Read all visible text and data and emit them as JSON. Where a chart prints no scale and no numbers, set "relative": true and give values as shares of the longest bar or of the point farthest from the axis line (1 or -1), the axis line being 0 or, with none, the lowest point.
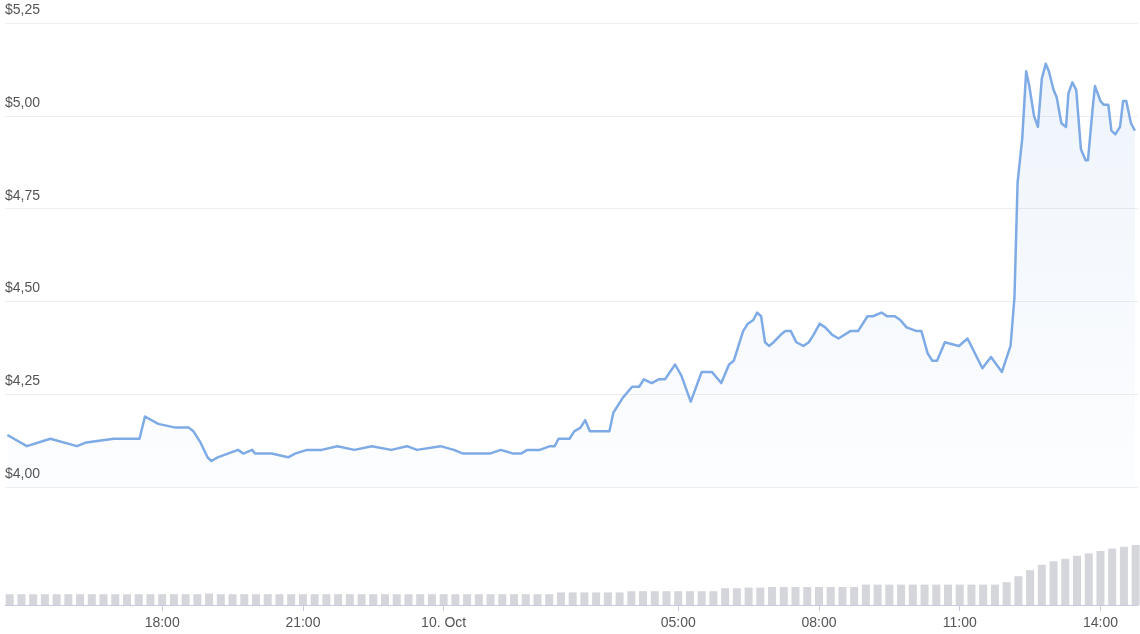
{
  "chart_data": [
    {
      "type": "area",
      "color": "#7eabe6",
      "xlim": [
        "--10-09T14:39",
        "--10-10T14:48"
      ],
      "ylim": [
        4,
        5.25
      ],
      "grid": "y",
      "tick_labels": "y",
      "yticks": [
        {
          "value": 4,
          "label": "$4,00"
        },
        {
          "value": 4.25,
          "label": "$4,25"
        },
        {
          "value": 4.5,
          "label": "$4,50"
        },
        {
          "value": 4.75,
          "label": "$4,75"
        },
        {
          "value": 5,
          "label": "$5,00"
        },
        {
          "value": 5.25,
          "label": "$5,25"
        }
      ],
      "x": [
        "--10-09T14:42",
        "--10-09T15:07",
        "--10-09T15:37",
        "--10-09T16:11",
        "--10-09T16:23",
        "--10-09T16:58",
        "--10-09T17:04",
        "--10-09T17:31",
        "--10-09T17:38",
        "--10-09T17:55",
        "--10-09T18:17",
        "--10-09T18:34",
        "--10-09T18:40",
        "--10-09T18:49",
        "--10-09T18:58",
        "--10-09T19:03",
        "--10-09T19:11",
        "--10-09T19:37",
        "--10-09T19:44",
        "--10-09T19:55",
        "--10-09T19:59",
        "--10-09T20:20",
        "--10-09T20:41",
        "--10-09T20:50",
        "--10-09T21:05",
        "--10-09T21:24",
        "--10-09T21:44",
        "--10-09T22:06",
        "--10-09T22:28",
        "--10-09T22:53",
        "--10-09T23:13",
        "--10-09T23:26",
        "--10-09T23:56",
        "--10-10T00:13",
        "--10-10T00:25",
        "--10-10T00:59",
        "--10-10T01:13",
        "--10-10T01:29",
        "--10-10T01:39",
        "--10-10T01:47",
        "--10-10T02:03",
        "--10-10T02:16",
        "--10-10T02:22",
        "--10-10T02:27",
        "--10-10T02:41",
        "--10-10T02:47",
        "--10-10T02:55",
        "--10-10T03:01",
        "--10-10T03:07",
        "--10-10T03:32",
        "--10-10T03:37",
        "--10-10T03:49",
        "--10-10T04:01",
        "--10-10T04:10",
        "--10-10T04:16",
        "--10-10T04:26",
        "--10-10T04:35",
        "--10-10T04:43",
        "--10-10T04:56",
        "--10-10T05:04",
        "--10-10T05:16",
        "--10-10T05:30",
        "--10-10T05:43",
        "--10-10T05:55",
        "--10-10T06:05",
        "--10-10T06:11",
        "--10-10T06:23",
        "--10-10T06:29",
        "--10-10T06:36",
        "--10-10T06:41",
        "--10-10T06:46",
        "--10-10T06:51",
        "--10-10T06:56",
        "--10-10T07:02",
        "--10-10T07:11",
        "--10-10T07:17",
        "--10-10T07:24",
        "--10-10T07:31",
        "--10-10T07:40",
        "--10-10T07:47",
        "--10-10T07:53",
        "--10-10T08:01",
        "--10-10T08:08",
        "--10-10T08:17",
        "--10-10T08:25",
        "--10-10T08:40",
        "--10-10T08:50",
        "--10-10T09:02",
        "--10-10T09:09",
        "--10-10T09:20",
        "--10-10T09:27",
        "--10-10T09:37",
        "--10-10T09:44",
        "--10-10T09:52",
        "--10-10T10:05",
        "--10-10T10:11",
        "--10-10T10:19",
        "--10-10T10:25",
        "--10-10T10:31",
        "--10-10T10:41",
        "--10-10T10:59",
        "--10-10T11:10",
        "--10-10T11:29",
        "--10-10T11:40",
        "--10-10T11:54",
        "--10-10T12:05",
        "--10-10T12:10",
        "--10-10T12:14",
        "--10-10T12:20",
        "--10-10T12:25",
        "--10-10T12:29",
        "--10-10T12:35",
        "--10-10T12:40",
        "--10-10T12:45",
        "--10-10T12:50",
        "--10-10T12:54",
        "--10-10T13:00",
        "--10-10T13:04",
        "--10-10T13:10",
        "--10-10T13:16",
        "--10-10T13:19",
        "--10-10T13:24",
        "--10-10T13:29",
        "--10-10T13:35",
        "--10-10T13:41",
        "--10-10T13:44",
        "--10-10T13:50",
        "--10-10T13:53",
        "--10-10T14:00",
        "--10-10T14:04",
        "--10-10T14:10",
        "--10-10T14:14",
        "--10-10T14:19",
        "--10-10T14:25",
        "--10-10T14:29",
        "--10-10T14:33",
        "--10-10T14:39",
        "--10-10T14:44"
      ],
      "values": [
        4.14,
        4.11,
        4.13,
        4.11,
        4.12,
        4.13,
        4.13,
        4.13,
        4.19,
        4.17,
        4.16,
        4.16,
        4.15,
        4.12,
        4.08,
        4.07,
        4.08,
        4.1,
        4.09,
        4.1,
        4.09,
        4.09,
        4.08,
        4.09,
        4.1,
        4.1,
        4.11,
        4.1,
        4.11,
        4.1,
        4.11,
        4.1,
        4.11,
        4.1,
        4.09,
        4.09,
        4.1,
        4.09,
        4.09,
        4.1,
        4.1,
        4.11,
        4.11,
        4.13,
        4.13,
        4.15,
        4.16,
        4.18,
        4.15,
        4.15,
        4.2,
        4.24,
        4.27,
        4.27,
        4.29,
        4.28,
        4.29,
        4.29,
        4.33,
        4.3,
        4.23,
        4.31,
        4.31,
        4.28,
        4.33,
        4.34,
        4.42,
        4.44,
        4.45,
        4.47,
        4.46,
        4.39,
        4.38,
        4.39,
        4.41,
        4.42,
        4.42,
        4.39,
        4.38,
        4.39,
        4.41,
        4.44,
        4.43,
        4.41,
        4.4,
        4.42,
        4.42,
        4.46,
        4.46,
        4.47,
        4.46,
        4.46,
        4.45,
        4.43,
        4.42,
        4.42,
        4.36,
        4.34,
        4.34,
        4.39,
        4.38,
        4.4,
        4.32,
        4.35,
        4.31,
        4.38,
        4.51,
        4.82,
        4.94,
        5.12,
        5.08,
        5.0,
        4.97,
        5.1,
        5.14,
        5.12,
        5.07,
        5.05,
        4.98,
        4.97,
        5.06,
        5.09,
        5.07,
        4.91,
        4.88,
        4.88,
        5.02,
        5.08,
        5.04,
        5.03,
        5.03,
        4.96,
        4.95,
        4.97,
        5.04,
        5.04,
        4.98,
        4.96
      ]
    },
    {
      "type": "bar",
      "relative": true,
      "color": "#d4d6db",
      "xlim": [
        "--10-09T14:39",
        "--10-10T14:48"
      ],
      "xticks": [
        {
          "value": "--10-09T18:00",
          "label": "18:00"
        },
        {
          "value": "--10-09T21:00",
          "label": "21:00"
        },
        {
          "value": "--10-10T00:00",
          "label": "10. Oct"
        },
        {
          "value": "--10-10T05:00",
          "label": "05:00"
        },
        {
          "value": "--10-10T08:00",
          "label": "08:00"
        },
        {
          "value": "--10-10T11:00",
          "label": "11:00"
        },
        {
          "value": "--10-10T14:00",
          "label": "14:00"
        }
      ],
      "x": [
        "--10-09T14:45",
        "--10-09T15:00",
        "--10-09T15:15",
        "--10-09T15:30",
        "--10-09T15:45",
        "--10-09T16:00",
        "--10-09T16:15",
        "--10-09T16:30",
        "--10-09T16:45",
        "--10-09T17:00",
        "--10-09T17:15",
        "--10-09T17:30",
        "--10-09T17:45",
        "--10-09T18:00",
        "--10-09T18:15",
        "--10-09T18:30",
        "--10-09T18:45",
        "--10-09T19:00",
        "--10-09T19:15",
        "--10-09T19:30",
        "--10-09T19:45",
        "--10-09T20:00",
        "--10-09T20:15",
        "--10-09T20:30",
        "--10-09T20:45",
        "--10-09T21:00",
        "--10-09T21:15",
        "--10-09T21:30",
        "--10-09T21:45",
        "--10-09T22:00",
        "--10-09T22:15",
        "--10-09T22:30",
        "--10-09T22:45",
        "--10-09T23:00",
        "--10-09T23:15",
        "--10-09T23:30",
        "--10-09T23:45",
        "--10-10T00:00",
        "--10-10T00:15",
        "--10-10T00:30",
        "--10-10T00:45",
        "--10-10T01:00",
        "--10-10T01:15",
        "--10-10T01:30",
        "--10-10T01:45",
        "--10-10T02:00",
        "--10-10T02:15",
        "--10-10T02:30",
        "--10-10T02:45",
        "--10-10T03:00",
        "--10-10T03:15",
        "--10-10T03:30",
        "--10-10T03:45",
        "--10-10T04:00",
        "--10-10T04:15",
        "--10-10T04:30",
        "--10-10T04:45",
        "--10-10T05:00",
        "--10-10T05:15",
        "--10-10T05:30",
        "--10-10T05:45",
        "--10-10T06:00",
        "--10-10T06:15",
        "--10-10T06:30",
        "--10-10T06:45",
        "--10-10T07:00",
        "--10-10T07:15",
        "--10-10T07:30",
        "--10-10T07:45",
        "--10-10T08:00",
        "--10-10T08:15",
        "--10-10T08:30",
        "--10-10T08:45",
        "--10-10T09:00",
        "--10-10T09:15",
        "--10-10T09:30",
        "--10-10T09:45",
        "--10-10T10:00",
        "--10-10T10:15",
        "--10-10T10:30",
        "--10-10T10:45",
        "--10-10T11:00",
        "--10-10T11:15",
        "--10-10T11:30",
        "--10-10T11:45",
        "--10-10T12:00",
        "--10-10T12:15",
        "--10-10T12:30",
        "--10-10T12:45",
        "--10-10T13:00",
        "--10-10T13:15",
        "--10-10T13:30",
        "--10-10T13:45",
        "--10-10T14:00",
        "--10-10T14:15",
        "--10-10T14:30",
        "--10-10T14:45"
      ],
      "values": [
        0.18,
        0.18,
        0.18,
        0.18,
        0.18,
        0.18,
        0.18,
        0.18,
        0.18,
        0.18,
        0.18,
        0.18,
        0.18,
        0.18,
        0.18,
        0.18,
        0.18,
        0.19,
        0.18,
        0.18,
        0.18,
        0.18,
        0.18,
        0.18,
        0.18,
        0.18,
        0.18,
        0.18,
        0.18,
        0.18,
        0.18,
        0.18,
        0.18,
        0.18,
        0.18,
        0.18,
        0.18,
        0.18,
        0.18,
        0.18,
        0.18,
        0.18,
        0.18,
        0.18,
        0.18,
        0.18,
        0.18,
        0.21,
        0.21,
        0.21,
        0.21,
        0.21,
        0.21,
        0.23,
        0.23,
        0.23,
        0.23,
        0.23,
        0.23,
        0.23,
        0.23,
        0.28,
        0.28,
        0.29,
        0.29,
        0.3,
        0.3,
        0.3,
        0.3,
        0.3,
        0.3,
        0.3,
        0.3,
        0.34,
        0.34,
        0.34,
        0.34,
        0.34,
        0.34,
        0.34,
        0.34,
        0.34,
        0.34,
        0.34,
        0.34,
        0.38,
        0.48,
        0.58,
        0.67,
        0.73,
        0.77,
        0.82,
        0.86,
        0.9,
        0.94,
        0.97,
        1.0
      ]
    }
  ]
}
